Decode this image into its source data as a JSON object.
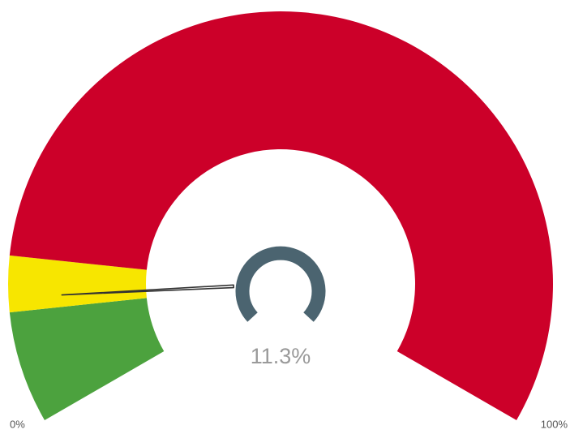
{
  "chart_data": {
    "type": "gauge",
    "value": 11.3,
    "value_label": "11.3%",
    "lim": [
      0,
      100
    ],
    "ticks": [
      {
        "value": 0,
        "label": "0%"
      },
      {
        "value": 100,
        "label": "100%"
      }
    ],
    "bands": [
      {
        "from": 0,
        "to": 10,
        "color": "#4ca23e"
      },
      {
        "from": 10,
        "to": 15,
        "color": "#f7e600"
      },
      {
        "from": 15,
        "to": 100,
        "color": "#cc0029"
      }
    ]
  }
}
